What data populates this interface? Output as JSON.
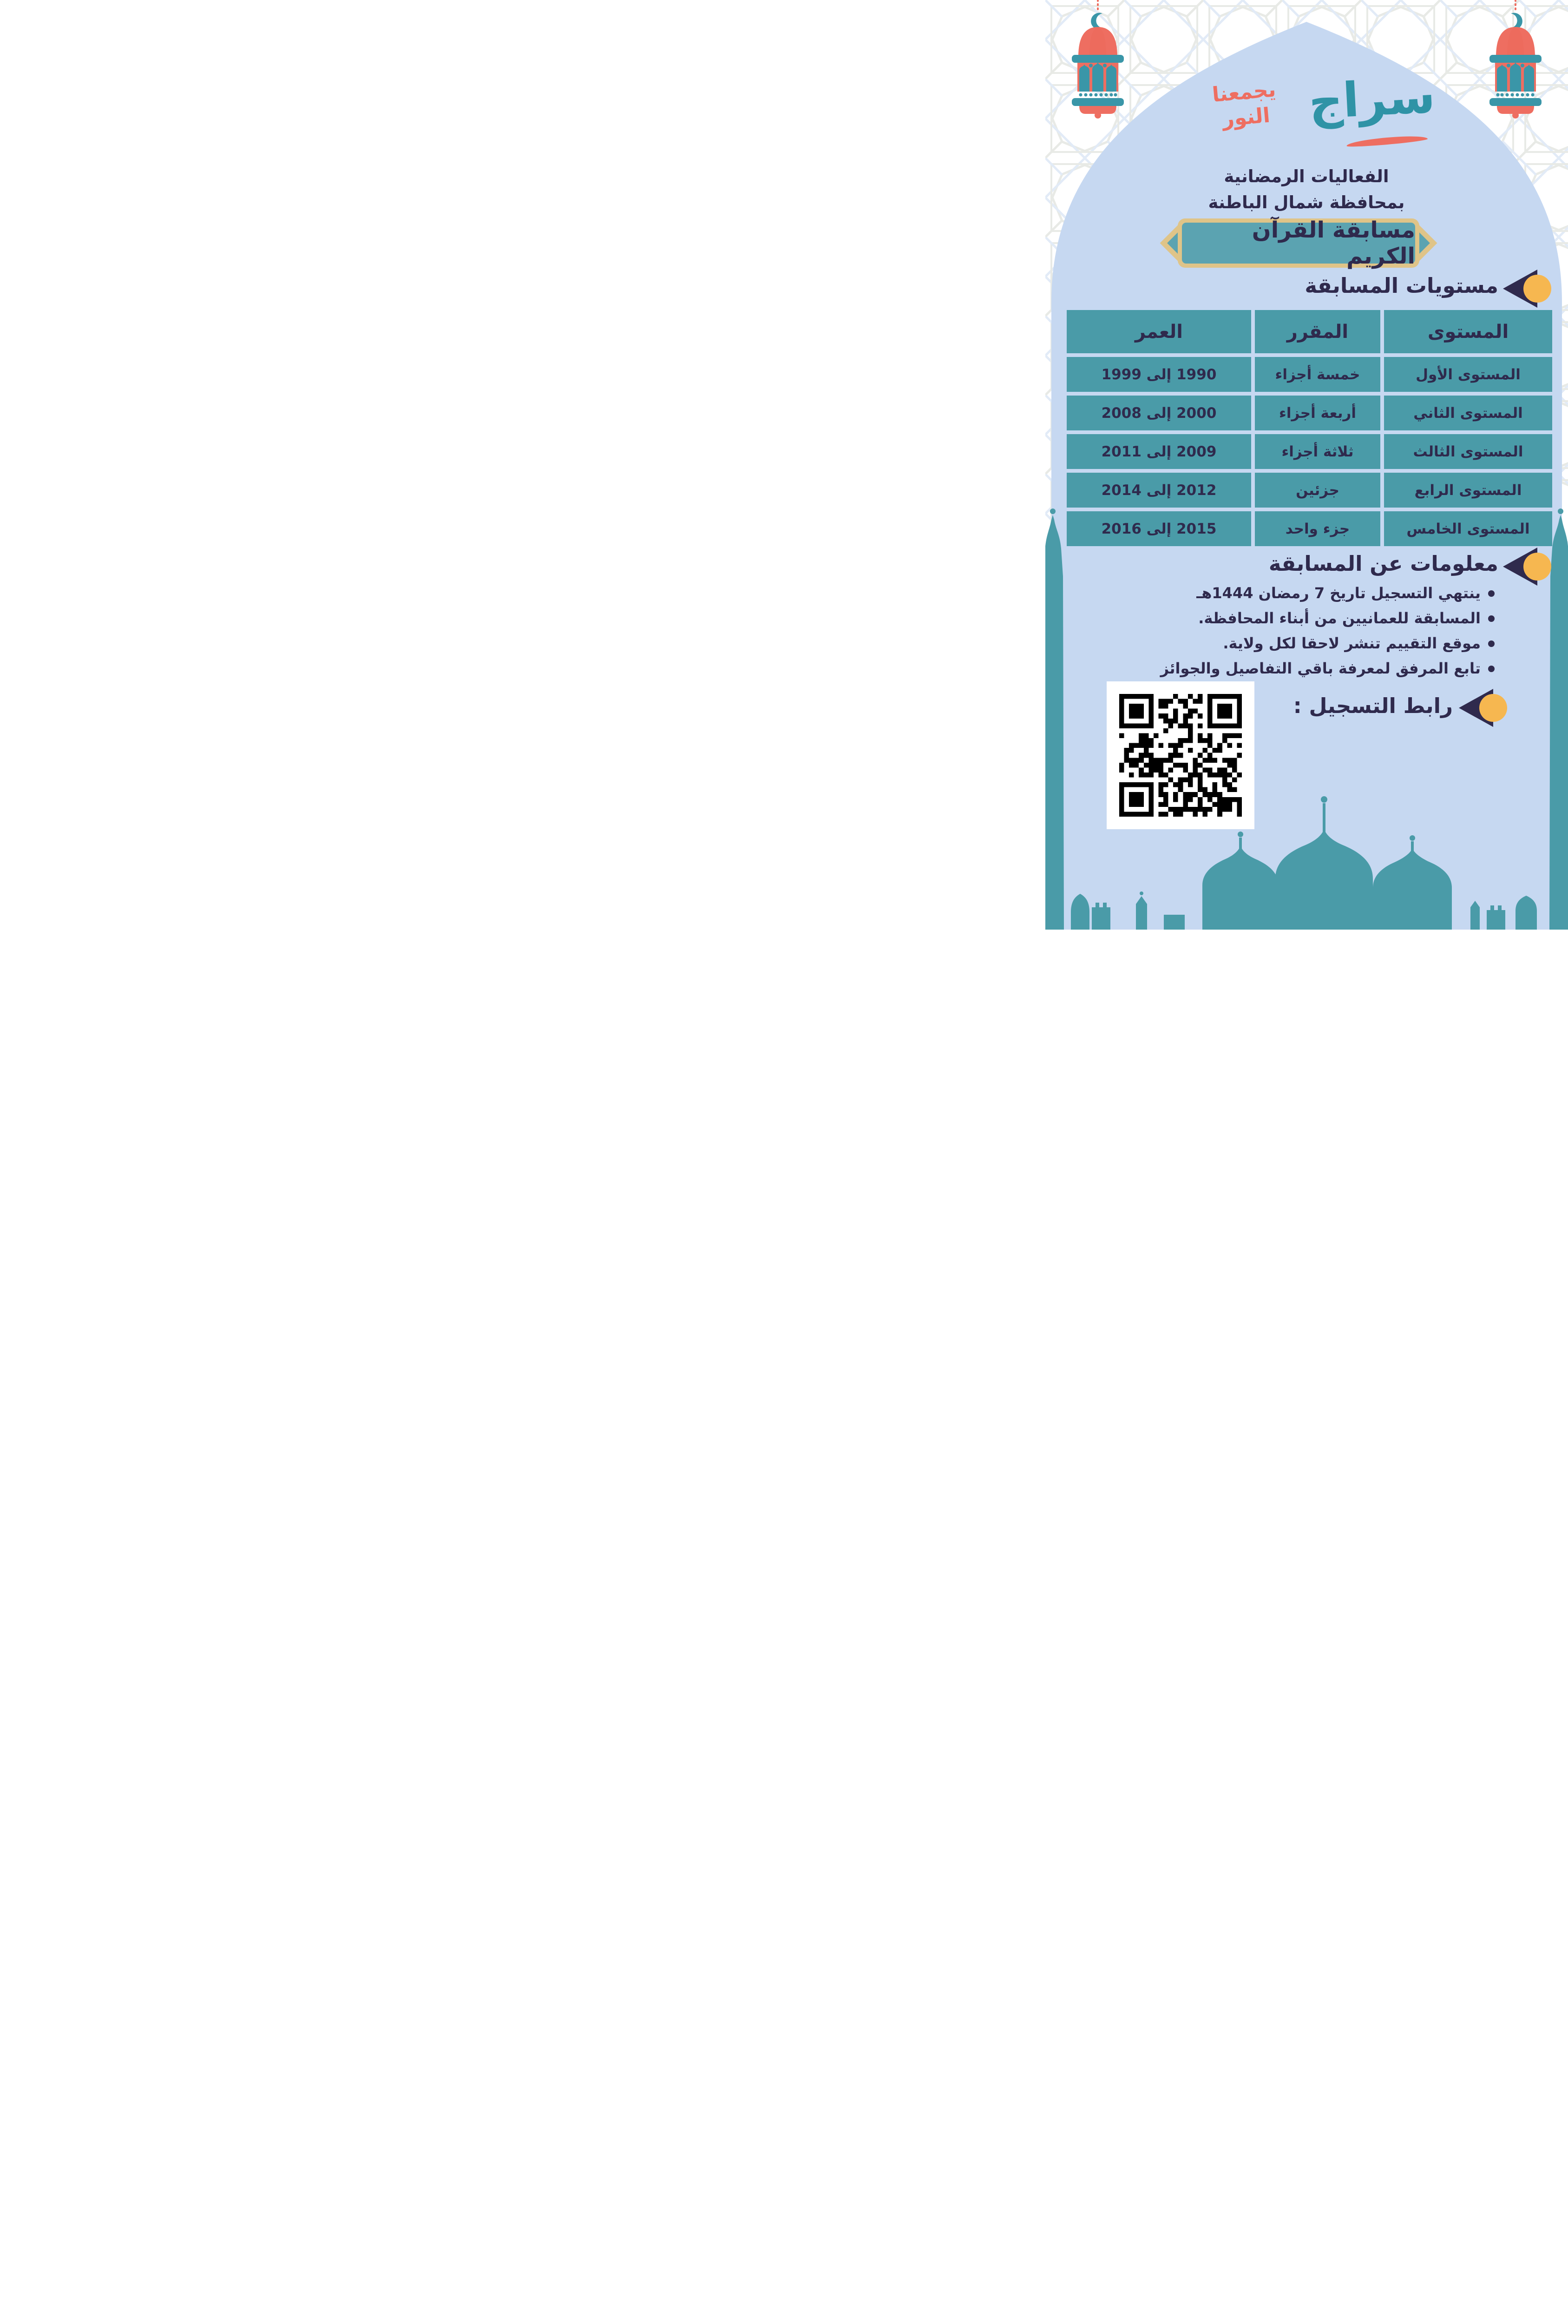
{
  "brand": {
    "slogan_line1": "يجمعنا",
    "slogan_line2": "النور",
    "logo_text": "سراج"
  },
  "header": {
    "line1": "الفعاليات الرمضانية",
    "line2": "بمحافظة شمال الباطنة",
    "title": "مسابقة القرآن الكريم"
  },
  "sections": {
    "levels": {
      "heading": "مستويات المسابقة"
    },
    "info": {
      "heading": "معلومات عن المسابقة",
      "bullets": [
        "ينتهي التسجيل تاريخ 7 رمضان 1444هـ",
        "المسابقة للعمانيين من أبناء المحافظة.",
        "موقع التقييم تنشر لاحقا لكل ولاية.",
        "تابع المرفق لمعرفة باقي التفاصيل والجوائز"
      ]
    },
    "registration": {
      "heading": "رابط التسجيل :"
    }
  },
  "table": {
    "headers": [
      "المستوى",
      "المقرر",
      "العمر"
    ],
    "rows": [
      [
        "المستوى الأول",
        "خمسة أجزاء",
        "1990 إلى 1999"
      ],
      [
        "المستوى الثاني",
        "أربعة أجزاء",
        "2000 إلى 2008"
      ],
      [
        "المستوى الثالث",
        "ثلاثة أجزاء",
        "2009 إلى 2011"
      ],
      [
        "المستوى الرابع",
        "جزئين",
        "2012 إلى 2014"
      ],
      [
        "المستوى الخامس",
        "جزء واحد",
        "2015 إلى 2016"
      ]
    ]
  },
  "icons": {
    "lantern": "ramadan-lantern-icon",
    "crescent": "crescent-moon-icon",
    "section_marker": "left-triangle-bullet-icon",
    "qr": "qr-code",
    "mosque": "mosque-silhouette"
  },
  "colors": {
    "arch_blue": "#c6d8f1",
    "teal": "#4a9ba8",
    "frame_teal": "#5ba3b1",
    "navy": "#2f2a4d",
    "coral": "#ee6e61",
    "gold": "#dfc488",
    "accent_yellow": "#f6b750",
    "logo_teal": "#2f93a6",
    "pattern_gray": "#e4e6e2",
    "pattern_blue": "#dde7f5"
  }
}
